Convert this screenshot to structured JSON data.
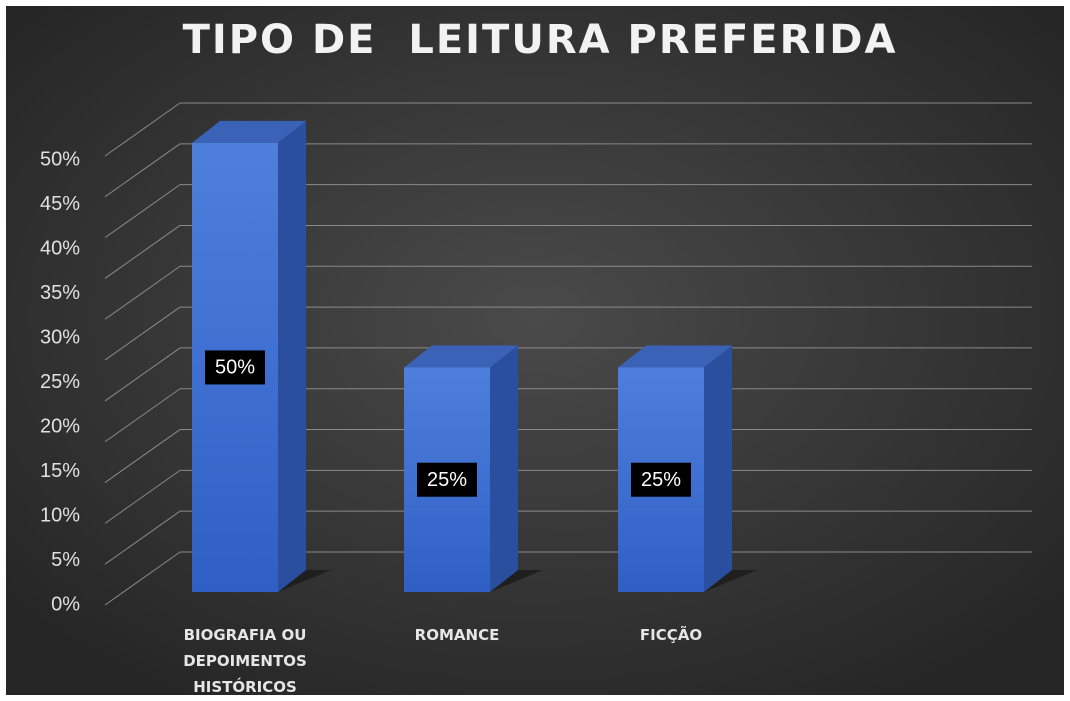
{
  "chart_data": {
    "type": "bar3d",
    "title": "TIPO DE  LEITURA PREFERIDA",
    "categories": [
      "BIOGRAFIA OU DEPOIMENTOS HISTÓRICOS",
      "ROMANCE",
      "FICÇÃO"
    ],
    "values": [
      50,
      25,
      25
    ],
    "value_labels": [
      "50%",
      "25%",
      "25%"
    ],
    "color": "#3f6fd1",
    "ylim": [
      0,
      55
    ],
    "yticks": [
      {
        "value": 0,
        "label": "0%"
      },
      {
        "value": 5,
        "label": "5%"
      },
      {
        "value": 10,
        "label": "10%"
      },
      {
        "value": 15,
        "label": "15%"
      },
      {
        "value": 20,
        "label": "20%"
      },
      {
        "value": 25,
        "label": "25%"
      },
      {
        "value": 30,
        "label": "30%"
      },
      {
        "value": 35,
        "label": "35%"
      },
      {
        "value": 40,
        "label": "40%"
      },
      {
        "value": 45,
        "label": "45%"
      },
      {
        "value": 50,
        "label": "50%"
      }
    ],
    "grid": true
  }
}
